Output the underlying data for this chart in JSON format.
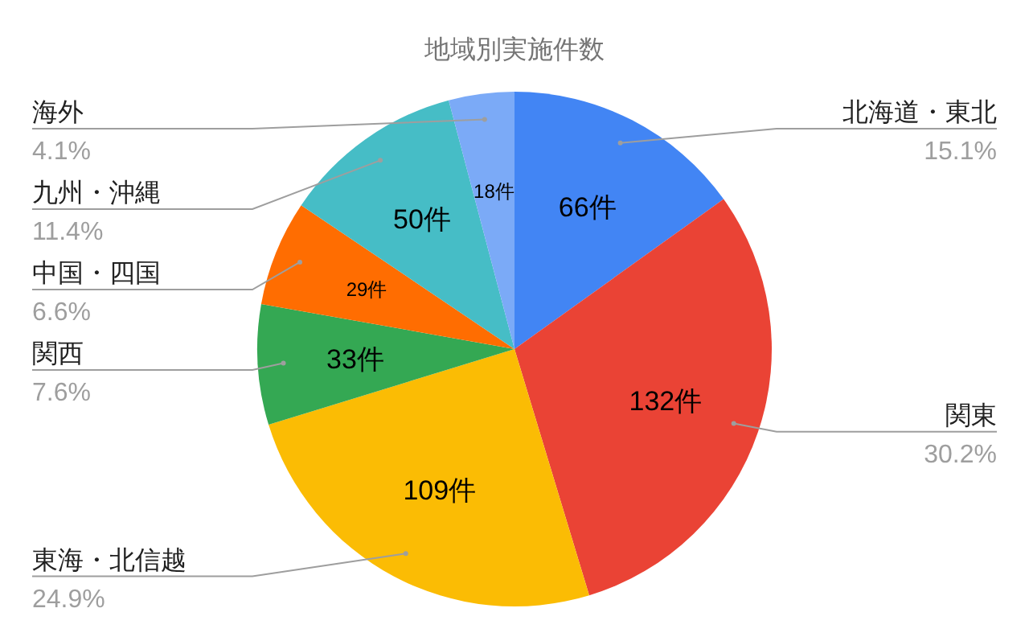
{
  "chart_data": {
    "type": "pie",
    "title": "地域別実施件数",
    "categories": [
      "北海道・東北",
      "関東",
      "東海・北信越",
      "関西",
      "中国・四国",
      "九州・沖縄",
      "海外"
    ],
    "values": [
      66,
      132,
      109,
      33,
      29,
      50,
      18
    ],
    "colors": [
      "#4285f4",
      "#ea4335",
      "#fbbc04",
      "#34a853",
      "#ff6d01",
      "#46bdc6",
      "#7baaf7"
    ],
    "value_labels": [
      "66件",
      "132件",
      "109件",
      "33件",
      "29件",
      "50件",
      "18件"
    ],
    "annotations": [
      {
        "text": "15.1%",
        "x": "北海道・東北"
      },
      {
        "text": "30.2%",
        "x": "関東"
      },
      {
        "text": "24.9%",
        "x": "東海・北信越"
      },
      {
        "text": "7.6%",
        "x": "関西"
      },
      {
        "text": "6.6%",
        "x": "中国・四国"
      },
      {
        "text": "11.4%",
        "x": "九州・沖縄"
      },
      {
        "text": "4.1%",
        "x": "海外"
      }
    ],
    "legend": false
  }
}
